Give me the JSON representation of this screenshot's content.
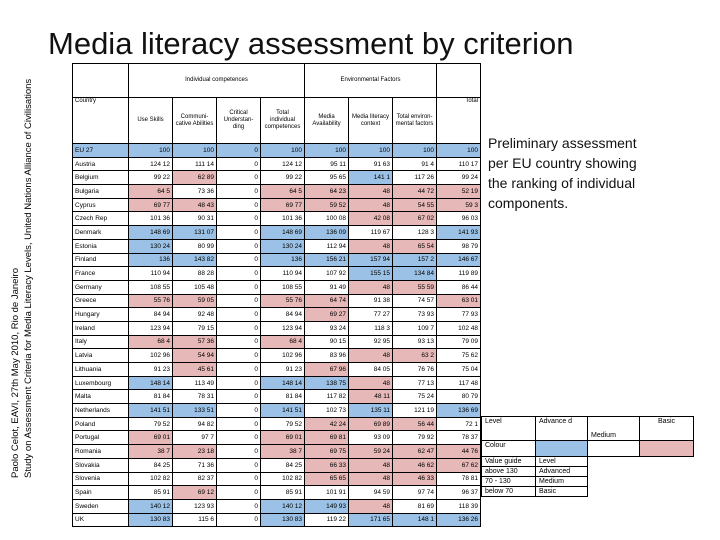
{
  "side_text_1": "Paolo Celot, EAVI, 27th May 2010, Rio de Janeiro",
  "side_text_2": "Study on Assessment Criteria for Media Literacy Levels, United Nations Alliance of Civilisations",
  "title": "Media literacy assessment by criterion",
  "table": {
    "group_individual": "Individual competences",
    "group_environmental": "Environmental Factors",
    "country_label": "Country",
    "total_label": "Total",
    "columns": [
      "Use Skills",
      "Communi-cative Abilities",
      "Critical Understan-ding",
      "Total individual competences",
      "Media Availability",
      "Media literacy context",
      "Total environ-mental factors"
    ],
    "rows": [
      {
        "name": "EU 27",
        "v": [
          "100",
          "100",
          "0",
          "100",
          "100",
          "100",
          "100",
          "100"
        ],
        "c": [
          "a",
          "a",
          "a",
          "a",
          "a",
          "a",
          "a",
          "a"
        ]
      },
      {
        "name": "Austria",
        "v": [
          "124 12",
          "111 14",
          "0",
          "124 12",
          "95 11",
          "91 63",
          "91 4",
          "110 17"
        ],
        "c": [
          "m",
          "m",
          "m",
          "m",
          "m",
          "m",
          "m",
          "m"
        ]
      },
      {
        "name": "Belgium",
        "v": [
          "99 22",
          "62 89",
          "0",
          "99 22",
          "95 65",
          "141 1",
          "117 26",
          "99 24"
        ],
        "c": [
          "m",
          "b",
          "m",
          "m",
          "m",
          "a",
          "m",
          "m"
        ]
      },
      {
        "name": "Bulgaria",
        "v": [
          "64 5",
          "73 36",
          "0",
          "64 5",
          "64 23",
          "48",
          "44 72",
          "52 19"
        ],
        "c": [
          "b",
          "m",
          "m",
          "b",
          "b",
          "b",
          "b",
          "b"
        ]
      },
      {
        "name": "Cyprus",
        "v": [
          "69 77",
          "48 43",
          "0",
          "69 77",
          "59 52",
          "48",
          "54 55",
          "59 3"
        ],
        "c": [
          "b",
          "b",
          "m",
          "b",
          "b",
          "b",
          "b",
          "b"
        ]
      },
      {
        "name": "Czech Rep",
        "v": [
          "101 36",
          "90 31",
          "0",
          "101 36",
          "100 08",
          "42 08",
          "67 02",
          "96 03"
        ],
        "c": [
          "m",
          "m",
          "m",
          "m",
          "m",
          "b",
          "b",
          "m"
        ]
      },
      {
        "name": "Denmark",
        "v": [
          "148 69",
          "131 07",
          "0",
          "148 69",
          "136 09",
          "119 67",
          "128 3",
          "141 93"
        ],
        "c": [
          "a",
          "a",
          "m",
          "a",
          "a",
          "m",
          "m",
          "a"
        ]
      },
      {
        "name": "Estonia",
        "v": [
          "130 24",
          "80 99",
          "0",
          "130 24",
          "112 94",
          "48",
          "65 54",
          "98 79"
        ],
        "c": [
          "a",
          "m",
          "m",
          "a",
          "m",
          "b",
          "b",
          "m"
        ]
      },
      {
        "name": "Finland",
        "v": [
          "136",
          "143 82",
          "0",
          "136",
          "156 21",
          "157 94",
          "157 2",
          "146 67"
        ],
        "c": [
          "a",
          "a",
          "m",
          "a",
          "a",
          "a",
          "a",
          "a"
        ]
      },
      {
        "name": "France",
        "v": [
          "110 94",
          "88 28",
          "0",
          "110 94",
          "107 92",
          "155 15",
          "134 84",
          "119 89"
        ],
        "c": [
          "m",
          "m",
          "m",
          "m",
          "m",
          "a",
          "a",
          "m"
        ]
      },
      {
        "name": "Germany",
        "v": [
          "108 55",
          "105 48",
          "0",
          "108 55",
          "91 49",
          "48",
          "55 59",
          "86 44"
        ],
        "c": [
          "m",
          "m",
          "m",
          "m",
          "m",
          "b",
          "b",
          "m"
        ]
      },
      {
        "name": "Greece",
        "v": [
          "55 76",
          "59 05",
          "0",
          "55 76",
          "64 74",
          "91 38",
          "74 57",
          "63 01"
        ],
        "c": [
          "b",
          "b",
          "m",
          "b",
          "b",
          "m",
          "m",
          "b"
        ]
      },
      {
        "name": "Hungary",
        "v": [
          "84 94",
          "92 48",
          "0",
          "84 94",
          "69 27",
          "77 27",
          "73 93",
          "77 93"
        ],
        "c": [
          "m",
          "m",
          "m",
          "m",
          "b",
          "m",
          "m",
          "m"
        ]
      },
      {
        "name": "Ireland",
        "v": [
          "123 94",
          "79 15",
          "0",
          "123 94",
          "93 24",
          "118 3",
          "109 7",
          "102 48"
        ],
        "c": [
          "m",
          "m",
          "m",
          "m",
          "m",
          "m",
          "m",
          "m"
        ]
      },
      {
        "name": "Italy",
        "v": [
          "68 4",
          "57 36",
          "0",
          "68 4",
          "90 15",
          "92 95",
          "93 13",
          "79 09"
        ],
        "c": [
          "b",
          "b",
          "m",
          "b",
          "m",
          "m",
          "m",
          "m"
        ]
      },
      {
        "name": "Latvia",
        "v": [
          "102 96",
          "54 94",
          "0",
          "102 96",
          "83 96",
          "48",
          "63 2",
          "75 62"
        ],
        "c": [
          "m",
          "b",
          "m",
          "m",
          "m",
          "b",
          "b",
          "m"
        ]
      },
      {
        "name": "Lithuania",
        "v": [
          "91 23",
          "45 61",
          "0",
          "91 23",
          "67 96",
          "84 05",
          "76 76",
          "75 04"
        ],
        "c": [
          "m",
          "b",
          "m",
          "m",
          "b",
          "m",
          "m",
          "m"
        ]
      },
      {
        "name": "Luxembourg",
        "v": [
          "148 14",
          "113 49",
          "0",
          "148 14",
          "138 75",
          "48",
          "77 13",
          "117 48"
        ],
        "c": [
          "a",
          "m",
          "m",
          "a",
          "a",
          "b",
          "m",
          "m"
        ]
      },
      {
        "name": "Malta",
        "v": [
          "81 84",
          "78 31",
          "0",
          "81 84",
          "117 82",
          "48 11",
          "75 24",
          "80 79"
        ],
        "c": [
          "m",
          "m",
          "m",
          "m",
          "m",
          "b",
          "m",
          "m"
        ]
      },
      {
        "name": "Netherlands",
        "v": [
          "141 51",
          "133 51",
          "0",
          "141 51",
          "102 73",
          "135 11",
          "121 19",
          "136 69"
        ],
        "c": [
          "a",
          "a",
          "m",
          "a",
          "m",
          "a",
          "m",
          "a"
        ]
      },
      {
        "name": "Poland",
        "v": [
          "79 52",
          "94 82",
          "0",
          "79 52",
          "42 24",
          "69 89",
          "56 44",
          "72 1"
        ],
        "c": [
          "m",
          "m",
          "m",
          "m",
          "b",
          "b",
          "b",
          "m"
        ]
      },
      {
        "name": "Portugal",
        "v": [
          "69 01",
          "97 7",
          "0",
          "69 01",
          "69 81",
          "93 09",
          "79 92",
          "78 37"
        ],
        "c": [
          "b",
          "m",
          "m",
          "b",
          "b",
          "m",
          "m",
          "m"
        ]
      },
      {
        "name": "Romania",
        "v": [
          "38 7",
          "23 18",
          "0",
          "38 7",
          "69 75",
          "59 24",
          "62 47",
          "44 76"
        ],
        "c": [
          "b",
          "b",
          "m",
          "b",
          "b",
          "b",
          "b",
          "b"
        ]
      },
      {
        "name": "Slovakia",
        "v": [
          "84 25",
          "71 36",
          "0",
          "84 25",
          "66 33",
          "48",
          "46 62",
          "67 62"
        ],
        "c": [
          "m",
          "m",
          "m",
          "m",
          "b",
          "b",
          "b",
          "b"
        ]
      },
      {
        "name": "Slovenia",
        "v": [
          "102 82",
          "82 37",
          "0",
          "102 82",
          "65 65",
          "48",
          "46 33",
          "78 81"
        ],
        "c": [
          "m",
          "m",
          "m",
          "m",
          "b",
          "b",
          "b",
          "m"
        ]
      },
      {
        "name": "Spain",
        "v": [
          "85 91",
          "69 12",
          "0",
          "85 91",
          "101 91",
          "94 59",
          "97 74",
          "96 37"
        ],
        "c": [
          "m",
          "b",
          "m",
          "m",
          "m",
          "m",
          "m",
          "m"
        ]
      },
      {
        "name": "Sweden",
        "v": [
          "140 12",
          "123 93",
          "0",
          "140 12",
          "149 93",
          "48",
          "81 69",
          "118 39"
        ],
        "c": [
          "a",
          "m",
          "m",
          "a",
          "a",
          "b",
          "m",
          "m"
        ]
      },
      {
        "name": "UK",
        "v": [
          "130 83",
          "115 6",
          "0",
          "130 83",
          "119 22",
          "171 65",
          "148 1",
          "136 26"
        ],
        "c": [
          "a",
          "m",
          "m",
          "a",
          "m",
          "a",
          "a",
          "a"
        ]
      }
    ]
  },
  "preliminary_text": "Preliminary assessment per EU country showing the ranking of individual components.",
  "legend": {
    "level_label": "Level",
    "advanced_label": "Advance d",
    "medium_label": "Medium",
    "basic_label": "Basic",
    "colour_label": "Colour",
    "value_guide_label": "Value guide",
    "level_header": "Level",
    "guide_rows": [
      {
        "range": "above 130",
        "level": "Advanced"
      },
      {
        "range": "70 - 130",
        "level": "Medium"
      },
      {
        "range": "below 70",
        "level": "Basic"
      }
    ],
    "colors": {
      "advanced": "#9bc2e6",
      "medium": "#ffffff",
      "basic": "#e6b8b7"
    }
  }
}
